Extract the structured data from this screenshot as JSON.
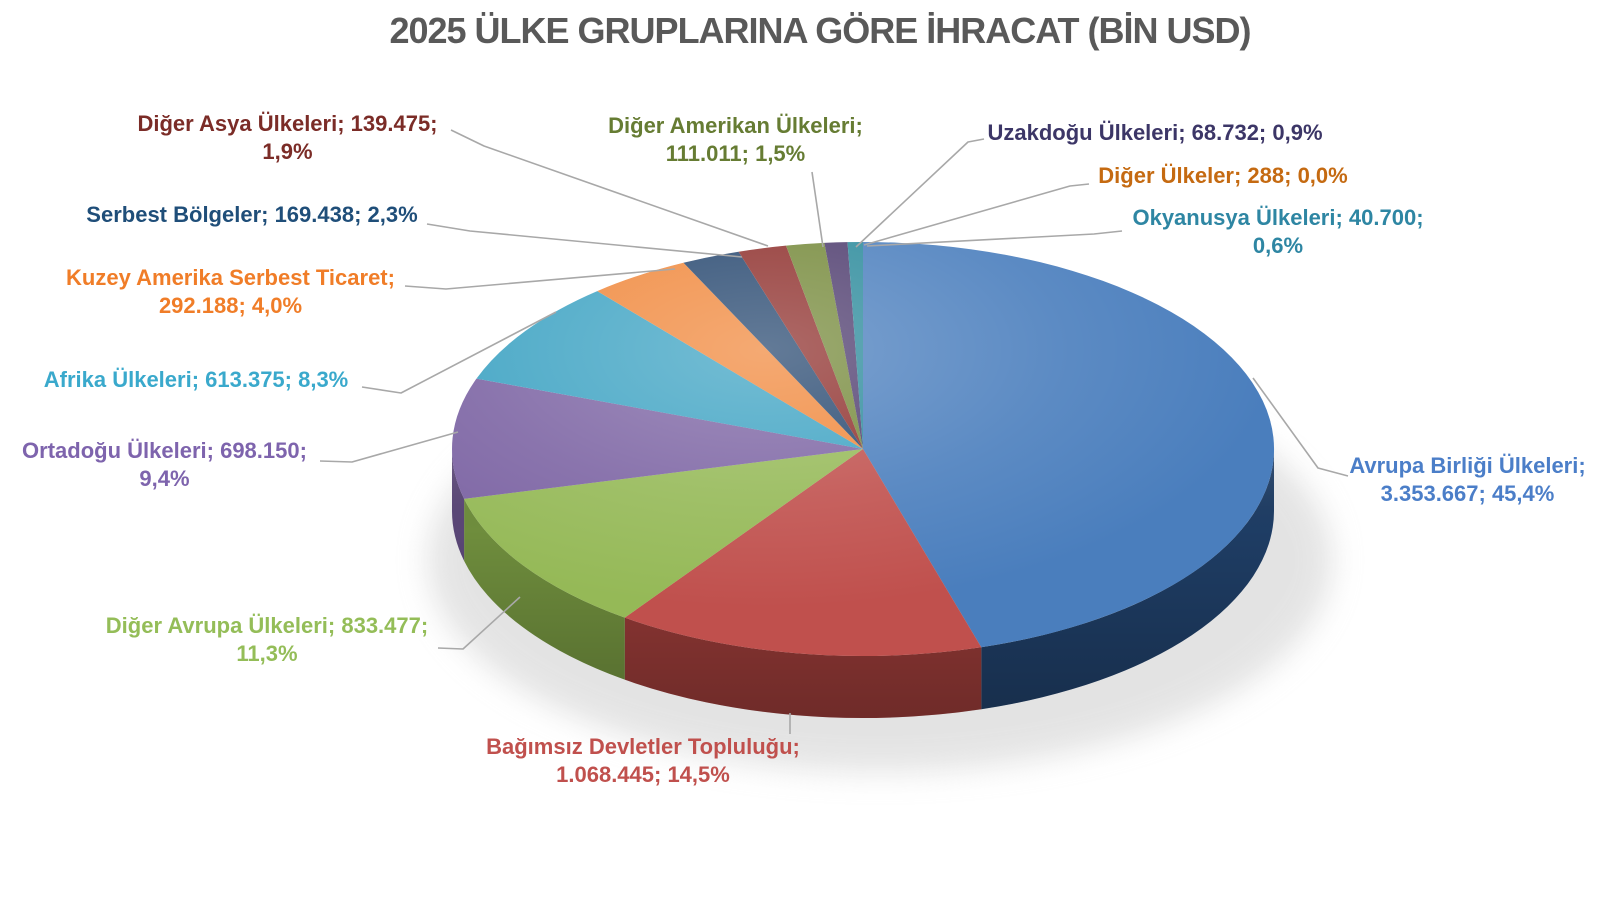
{
  "title": "2025 ÜLKE GRUPLARINA GÖRE İHRACAT (BİN USD)",
  "title_color": "#595959",
  "background": "#FFFFFF",
  "chart_data": {
    "type": "pie",
    "style": "3d-pie",
    "title": "2025 ÜLKE GRUPLARINA GÖRE İHRACAT (BİN USD)",
    "unit": "BİN USD",
    "label_format": "name; value; percent",
    "legend_position": "none",
    "leader_line_color": "#A8A8A8",
    "slices": [
      {
        "label": "Avrupa Birliği Ülkeleri",
        "value": 3353667,
        "value_display": "3.353.667",
        "pct": 45.4,
        "pct_display": "45,4%",
        "color": "#4A7EBD",
        "side_color": "#1F3E66",
        "label_color": "#4B7EC8",
        "lines": [
          "Avrupa Birliği Ülkeleri;",
          "3.353.667; 45,4%"
        ]
      },
      {
        "label": "Bağımsız Devletler Topluluğu",
        "value": 1068445,
        "value_display": "1.068.445",
        "pct": 14.5,
        "pct_display": "14,5%",
        "color": "#C0504D",
        "side_color": "#963A37",
        "label_color": "#C0504D",
        "lines": [
          "Bağımsız Devletler Topluluğu;",
          "1.068.445; 14,5%"
        ]
      },
      {
        "label": "Diğer Avrupa Ülkeleri",
        "value": 833477,
        "value_display": "833.477",
        "pct": 11.3,
        "pct_display": "11,3%",
        "color": "#95B957",
        "side_color": "#71903E",
        "label_color": "#94BD58",
        "lines": [
          "Diğer Avrupa Ülkeleri; 833.477;",
          "11,3%"
        ]
      },
      {
        "label": "Ortadoğu Ülkeleri",
        "value": 698150,
        "value_display": "698.150",
        "pct": 9.4,
        "pct_display": "9,4%",
        "color": "#7D65A4",
        "side_color": "#5C4879",
        "label_color": "#7E64AD",
        "lines": [
          "Ortadoğu Ülkeleri; 698.150;",
          "9,4%"
        ]
      },
      {
        "label": "Afrika Ülkeleri",
        "value": 613375,
        "value_display": "613.375",
        "pct": 8.3,
        "pct_display": "8,3%",
        "color": "#3EA3C3",
        "side_color": "#2B7A93",
        "label_color": "#3AA9CC",
        "lines": [
          "Afrika Ülkeleri; 613.375; 8,3%"
        ]
      },
      {
        "label": "Kuzey Amerika Serbest Ticaret",
        "value": 292188,
        "value_display": "292.188",
        "pct": 4.0,
        "pct_display": "4,0%",
        "color": "#F0883C",
        "side_color": "#BC6423",
        "label_color": "#F07D28",
        "lines": [
          "Kuzey Amerika Serbest Ticaret;",
          "292.188; 4,0%"
        ]
      },
      {
        "label": "Serbest Bölgeler",
        "value": 169438,
        "value_display": "169.438",
        "pct": 2.3,
        "pct_display": "2,3%",
        "color": "#26476F",
        "side_color": "#16304F",
        "label_color": "#1F4E79",
        "lines": [
          "Serbest Bölgeler; 169.438; 2,3%"
        ]
      },
      {
        "label": "Diğer Asya Ülkeleri",
        "value": 139475,
        "value_display": "139.475",
        "pct": 1.9,
        "pct_display": "1,9%",
        "color": "#8E2F2C",
        "side_color": "#66201E",
        "label_color": "#7B2C27",
        "lines": [
          "Diğer Asya Ülkeleri; 139.475;",
          "1,9%"
        ]
      },
      {
        "label": "Diğer Amerikan Ülkeleri",
        "value": 111011,
        "value_display": "111.011",
        "pct": 1.5,
        "pct_display": "1,5%",
        "color": "#75893A",
        "side_color": "#525F29",
        "label_color": "#667C33",
        "lines": [
          "Diğer Amerikan Ülkeleri;",
          "111.011; 1,5%"
        ]
      },
      {
        "label": "Uzakdoğu Ülkeleri",
        "value": 68732,
        "value_display": "68.732",
        "pct": 0.9,
        "pct_display": "0,9%",
        "color": "#4E3C6E",
        "side_color": "#352849",
        "label_color": "#3C3667",
        "lines": [
          "Uzakdoğu Ülkeleri; 68.732; 0,9%"
        ]
      },
      {
        "label": "Diğer Ülkeler",
        "value": 288,
        "value_display": "288",
        "pct": 0.0,
        "pct_display": "0,0%",
        "color": "#C56A11",
        "side_color": "#8C4A0B",
        "label_color": "#C56A11",
        "lines": [
          "Diğer Ülkeler; 288; 0,0%"
        ]
      },
      {
        "label": "Okyanusya Ülkeleri",
        "value": 40700,
        "value_display": "40.700",
        "pct": 0.6,
        "pct_display": "0,6%",
        "color": "#2B8A9B",
        "side_color": "#1D616E",
        "label_color": "#2E86A3",
        "lines": [
          "Okyanusya Ülkeleri; 40.700;",
          "0,6%"
        ]
      }
    ]
  }
}
